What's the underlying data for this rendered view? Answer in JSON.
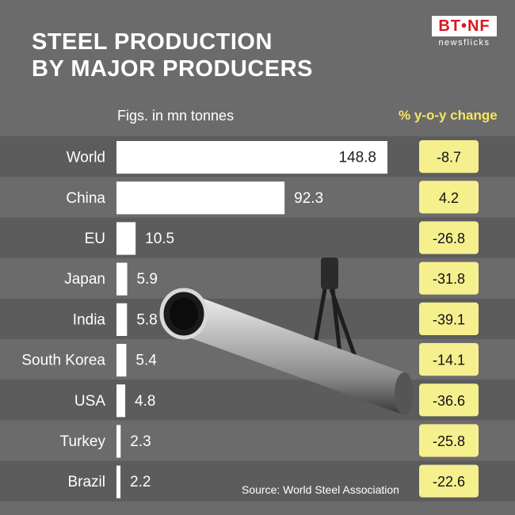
{
  "header": {
    "title_line1": "STEEL PRODUCTION",
    "title_line2": "BY MAJOR PRODUCERS",
    "logo_top": "BT•NF",
    "logo_bottom": "newsflicks"
  },
  "labels": {
    "units": "Figs. in mn tonnes",
    "yoy": "% y-o-y change",
    "source": "Source: World Steel Association"
  },
  "colors": {
    "background": "#6b6b6b",
    "band": "#5c5c5c",
    "bar": "#ffffff",
    "yoy_box": "#f6ef8e",
    "title": "#ffffff"
  },
  "chart_data": {
    "type": "bar",
    "orientation": "horizontal",
    "categories": [
      "World",
      "China",
      "EU",
      "Japan",
      "India",
      "South Korea",
      "USA",
      "Turkey",
      "Brazil"
    ],
    "values": [
      148.8,
      92.3,
      10.5,
      5.9,
      5.8,
      5.4,
      4.8,
      2.3,
      2.2
    ],
    "yoy_change": [
      "-8.7",
      "4.2",
      "-26.8",
      "-31.8",
      "-39.1",
      "-14.1",
      "-36.6",
      "-25.8",
      "-22.6"
    ],
    "title": "STEEL PRODUCTION BY MAJOR PRODUCERS",
    "xlabel": "Figs. in mn tonnes"
  }
}
